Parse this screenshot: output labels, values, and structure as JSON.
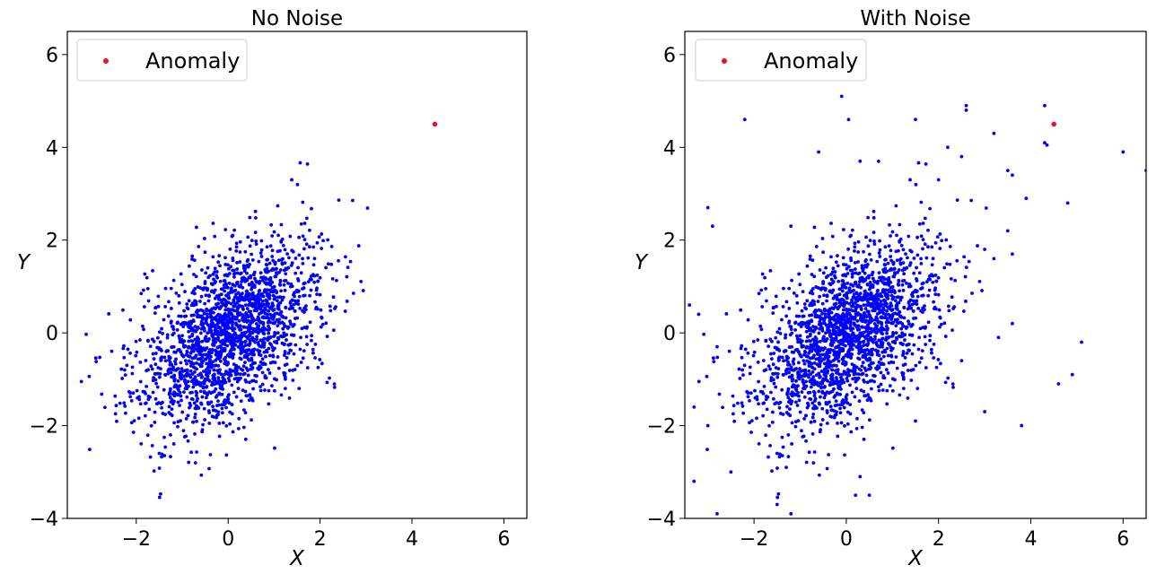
{
  "chart_data": [
    {
      "type": "scatter",
      "title": "No Noise",
      "xlabel": "X",
      "ylabel": "Y",
      "xlim": [
        -3.5,
        6.5
      ],
      "ylim": [
        -4,
        6.5
      ],
      "xticks": [
        -2,
        0,
        2,
        4,
        6
      ],
      "yticks": [
        -4,
        -2,
        0,
        2,
        4,
        6
      ],
      "x_tick_labels": [
        "−2",
        "0",
        "2",
        "4",
        "6"
      ],
      "y_tick_labels": [
        "−4",
        "−2",
        "0",
        "2",
        "4",
        "6"
      ],
      "grid": false,
      "legend_position": "top-left",
      "legend_label": "Anomaly",
      "series": [
        {
          "description": "Correlated bivariate Gaussian cloud (approx. 2000 points, mean 0, sd 1, rho 0.5)",
          "color": "#0000ff",
          "n_points": 2000,
          "mean": [
            0,
            0
          ],
          "sd": [
            1,
            1
          ],
          "rho": 0.5
        },
        {
          "name": "Anomaly",
          "color": "#e8102a",
          "points": [
            [
              4.5,
              4.5
            ]
          ]
        }
      ]
    },
    {
      "type": "scatter",
      "title": "With Noise",
      "xlabel": "X",
      "ylabel": "Y",
      "xlim": [
        -3.5,
        6.5
      ],
      "ylim": [
        -4,
        6.5
      ],
      "xticks": [
        -2,
        0,
        2,
        4,
        6
      ],
      "yticks": [
        -4,
        -2,
        0,
        2,
        4,
        6
      ],
      "x_tick_labels": [
        "−2",
        "0",
        "2",
        "4",
        "6"
      ],
      "y_tick_labels": [
        "−4",
        "−2",
        "0",
        "2",
        "4",
        "6"
      ],
      "grid": false,
      "legend_position": "top-left",
      "legend_label": "Anomaly",
      "series": [
        {
          "description": "Same correlated Gaussian cloud as left panel",
          "color": "#0000ff",
          "n_points": 2000,
          "mean": [
            0,
            0
          ],
          "sd": [
            1,
            1
          ],
          "rho": 0.5
        },
        {
          "description": "Scattered noise points",
          "color": "#0000ff",
          "points": [
            [
              -2.2,
              4.6
            ],
            [
              -0.6,
              3.9
            ],
            [
              -0.1,
              5.1
            ],
            [
              0.05,
              4.6
            ],
            [
              0.3,
              3.7
            ],
            [
              0.7,
              3.7
            ],
            [
              1.5,
              4.6
            ],
            [
              2.6,
              4.9
            ],
            [
              2.6,
              4.8
            ],
            [
              3.2,
              4.3
            ],
            [
              4.3,
              4.9
            ],
            [
              4.3,
              4.1
            ],
            [
              4.35,
              4.05
            ],
            [
              6.0,
              3.9
            ],
            [
              6.5,
              3.5
            ],
            [
              2.2,
              4.0
            ],
            [
              2.0,
              3.3
            ],
            [
              2.5,
              3.8
            ],
            [
              3.5,
              3.5
            ],
            [
              3.6,
              3.4
            ],
            [
              3.9,
              2.9
            ],
            [
              4.8,
              2.8
            ],
            [
              -3.0,
              2.7
            ],
            [
              -2.9,
              2.3
            ],
            [
              -1.2,
              2.3
            ],
            [
              3.5,
              2.2
            ],
            [
              3.0,
              1.8
            ],
            [
              3.2,
              1.6
            ],
            [
              3.6,
              1.7
            ],
            [
              -3.4,
              0.6
            ],
            [
              -3.2,
              0.4
            ],
            [
              -2.8,
              -0.3
            ],
            [
              -3.3,
              -1.6
            ],
            [
              -3.0,
              -2.0
            ],
            [
              -2.5,
              -3.0
            ],
            [
              -3.3,
              -3.2
            ],
            [
              -1.3,
              -2.9
            ],
            [
              -1.5,
              -3.7
            ],
            [
              -1.2,
              -3.9
            ],
            [
              -2.8,
              -3.9
            ],
            [
              0.2,
              -3.5
            ],
            [
              0.5,
              -3.5
            ],
            [
              0.3,
              -3.1
            ],
            [
              3.0,
              -1.7
            ],
            [
              3.3,
              -0.1
            ],
            [
              3.6,
              0.2
            ],
            [
              3.8,
              -2.0
            ],
            [
              4.6,
              -1.1
            ],
            [
              4.9,
              -0.9
            ],
            [
              5.1,
              -0.2
            ],
            [
              1.5,
              -1.9
            ],
            [
              2.5,
              -0.6
            ]
          ]
        },
        {
          "name": "Anomaly",
          "color": "#e8102a",
          "points": [
            [
              4.5,
              4.5
            ]
          ]
        }
      ]
    }
  ]
}
